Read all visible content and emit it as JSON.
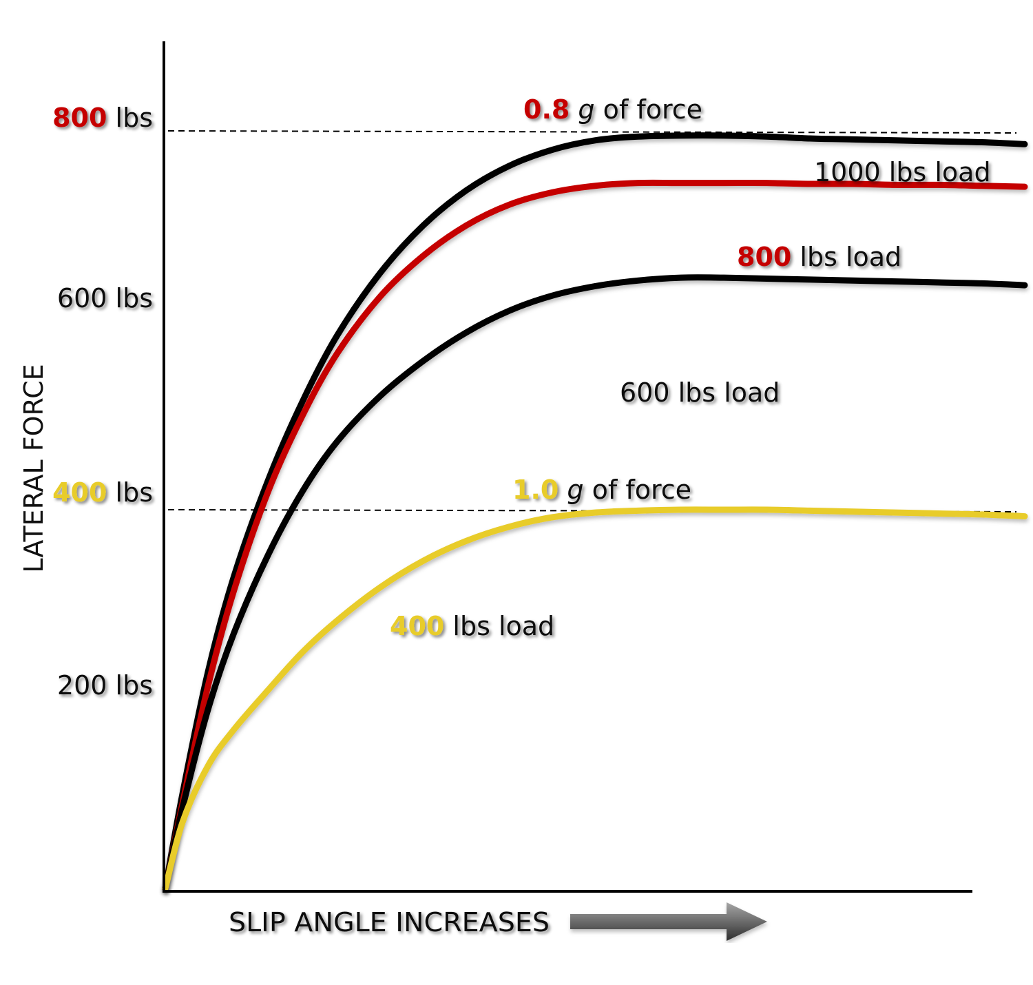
{
  "chart_data": {
    "type": "line",
    "title": "",
    "xlabel": "SLIP ANGLE INCREASES",
    "ylabel": "LATERAL FORCE",
    "xlim": [
      0,
      100
    ],
    "ylim": [
      0,
      900
    ],
    "x": [
      0,
      2,
      5,
      8,
      12,
      16,
      20,
      25,
      30,
      35,
      40,
      45,
      50,
      55,
      60,
      65,
      70,
      75,
      80,
      85,
      90,
      95,
      100
    ],
    "y_ticks": [
      {
        "value": 200,
        "number": "200",
        "unit": "lbs",
        "color": "#111111"
      },
      {
        "value": 400,
        "number": "400",
        "unit": "lbs",
        "color": "#e8cc2c"
      },
      {
        "value": 600,
        "number": "600",
        "unit": "lbs",
        "color": "#111111"
      },
      {
        "value": 800,
        "number": "800",
        "unit": "lbs",
        "color": "#c50000"
      }
    ],
    "series": [
      {
        "name": "1000 lbs load",
        "number": "1000",
        "suffix": "lbs load",
        "color": "#000000",
        "number_color": "#111111",
        "values": [
          0,
          100,
          230,
          330,
          432,
          515,
          584,
          650,
          700,
          737,
          763,
          780,
          790,
          794,
          795,
          795,
          794,
          792,
          791,
          790,
          789,
          788,
          786
        ]
      },
      {
        "name": "800 lbs load",
        "number": "800",
        "suffix": "lbs load",
        "color": "#c50000",
        "number_color": "#c50000",
        "values": [
          0,
          90,
          215,
          315,
          420,
          500,
          565,
          625,
          668,
          700,
          722,
          735,
          742,
          745,
          745,
          745,
          745,
          744,
          744,
          743,
          743,
          742,
          741
        ]
      },
      {
        "name": "600 lbs load",
        "number": "600",
        "suffix": "lbs load",
        "color": "#000000",
        "number_color": "#111111",
        "values": [
          0,
          85,
          190,
          270,
          353,
          420,
          472,
          520,
          557,
          587,
          610,
          626,
          636,
          642,
          645,
          645,
          644,
          643,
          642,
          641,
          640,
          639,
          637
        ]
      },
      {
        "name": "400 lbs load",
        "number": "400",
        "suffix": "lbs load",
        "color": "#e8cc2c",
        "number_color": "#e8cc2c",
        "values": [
          0,
          70,
          130,
          168,
          210,
          250,
          283,
          318,
          346,
          367,
          382,
          392,
          397,
          399,
          400,
          400,
          400,
          399,
          398,
          397,
          396,
          395,
          393
        ]
      }
    ],
    "reference_lines": [
      {
        "value": 800,
        "number": "0.8",
        "g": "g",
        "suffix": "of force",
        "number_color": "#c50000"
      },
      {
        "value": 400,
        "number": "1.0",
        "g": "g",
        "suffix": "of force",
        "number_color": "#e8cc2c"
      }
    ],
    "arrow": "gradient-right-arrow-icon",
    "grid": false,
    "legend": "inline"
  }
}
